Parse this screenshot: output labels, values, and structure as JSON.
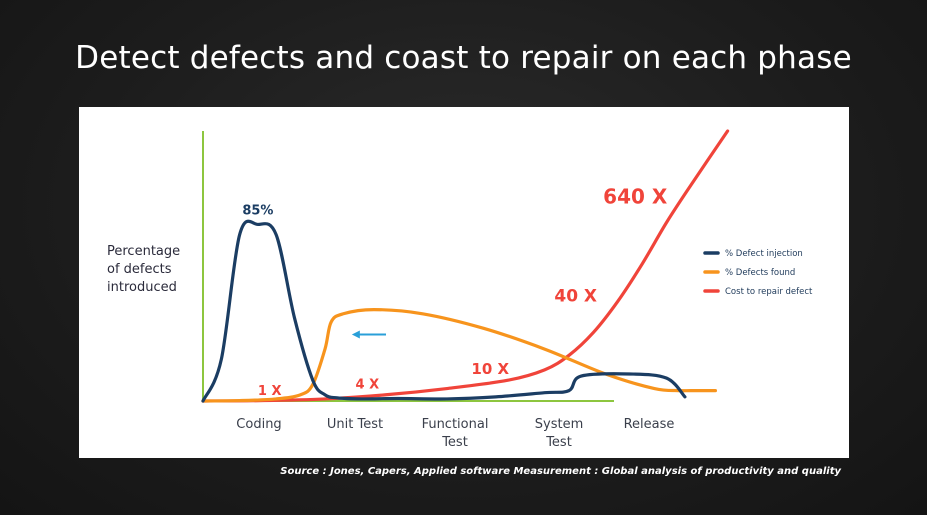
{
  "slide": {
    "title": "Detect defects and coast to repair on each phase",
    "source": "Source : Jones, Capers, Applied software Measurement : Global analysis of productivity and quality"
  },
  "colors": {
    "injection": "#1b3d63",
    "found": "#f7941d",
    "cost": "#f0443a",
    "axis": "#8dc63f",
    "arrow": "#2a9fd8"
  },
  "chart_data": {
    "type": "line",
    "title": "",
    "ylabel_lines": [
      "Percentage",
      "of defects",
      "introduced"
    ],
    "categories": [
      "Coding",
      "Unit Test",
      "Functional Test",
      "System Test",
      "Release"
    ],
    "category_lines": [
      [
        "Coding"
      ],
      [
        "Unit Test"
      ],
      [
        "Functional",
        "Test"
      ],
      [
        "System",
        "Test"
      ],
      [
        "Release"
      ]
    ],
    "series": [
      {
        "name": "% Defect injection",
        "color": "#1b3d63",
        "x": [
          0,
          0.15,
          0.3,
          0.45,
          0.6,
          0.75,
          0.9,
          1.0,
          1.1,
          1.3,
          1.6,
          2.0,
          2.4,
          2.8,
          3.0,
          3.1,
          3.5,
          3.8,
          3.95
        ],
        "y": [
          0,
          20,
          80,
          85,
          80,
          40,
          10,
          3,
          1.5,
          1,
          1.2,
          1,
          2,
          4,
          5,
          12,
          13,
          11,
          2
        ]
      },
      {
        "name": "% Defects found",
        "color": "#f7941d",
        "x": [
          0,
          0.3,
          0.6,
          0.8,
          0.9,
          1.0,
          1.05,
          1.15,
          1.4,
          1.8,
          2.3,
          2.8,
          3.3,
          3.7,
          3.9,
          4.0,
          4.2
        ],
        "y": [
          0,
          0.2,
          1,
          3,
          8,
          25,
          38,
          42,
          44,
          42,
          35,
          25,
          13,
          6,
          5,
          5,
          5
        ]
      },
      {
        "name": "Cost to repair defect",
        "color": "#f0443a",
        "x": [
          0,
          0.5,
          1.0,
          1.5,
          2.0,
          2.5,
          2.8,
          3.0,
          3.2,
          3.4,
          3.6,
          3.8,
          4.0,
          4.3
        ],
        "y": [
          0,
          0.2,
          1,
          3,
          6,
          10,
          15,
          22,
          33,
          48,
          66,
          86,
          104,
          130
        ]
      }
    ],
    "peak_label": {
      "text": "85%",
      "x": 0.45,
      "y": 85
    },
    "cost_labels": [
      {
        "text": "1 X",
        "x": 0.45,
        "y": 3,
        "size": 13
      },
      {
        "text": "4 X",
        "x": 1.25,
        "y": 6,
        "size": 13
      },
      {
        "text": "10 X",
        "x": 2.2,
        "y": 13,
        "size": 15
      },
      {
        "text": "40 X",
        "x": 2.88,
        "y": 48,
        "size": 17
      },
      {
        "text": "640 X",
        "x": 3.28,
        "y": 95,
        "size": 20
      }
    ],
    "arrow": {
      "x_from": 1.5,
      "x_to": 1.22,
      "y": 32
    },
    "xlim": [
      0,
      4.3
    ],
    "ylim": [
      0,
      130
    ],
    "legend": {
      "position": "right",
      "entries": [
        "% Defect injection",
        "% Defects found",
        "Cost to repair defect"
      ]
    }
  }
}
